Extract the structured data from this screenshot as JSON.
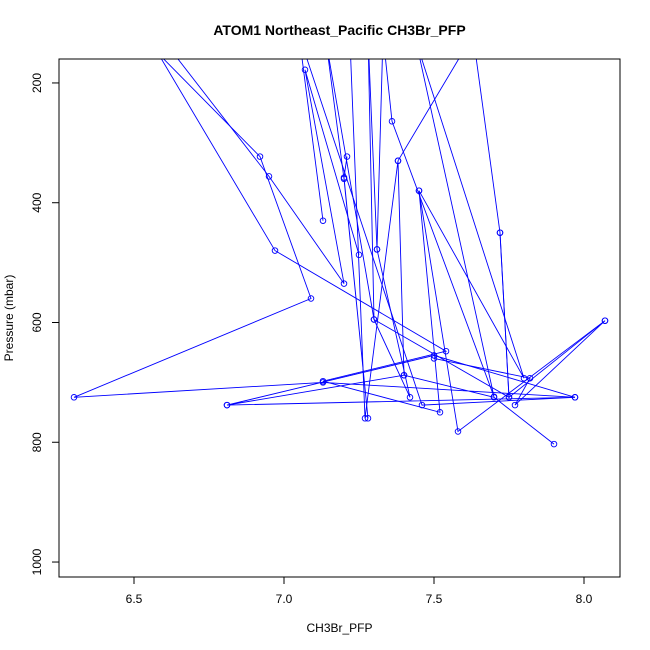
{
  "chart_data": {
    "type": "line",
    "title": "ATOM1 Northeast_Pacific CH3Br_PFP",
    "xlabel": "CH3Br_PFP",
    "ylabel": "Pressure (mbar)",
    "xlim": [
      6.25,
      8.12
    ],
    "ylim": [
      1025,
      160
    ],
    "y_reversed": true,
    "x_ticks": [
      6.5,
      7.0,
      7.5,
      8.0
    ],
    "x_tick_labels": [
      "6.5",
      "7.0",
      "7.5",
      "8.0"
    ],
    "y_ticks": [
      200,
      400,
      600,
      800,
      1000
    ],
    "y_tick_labels": [
      "200",
      "400",
      "600",
      "800",
      "1000"
    ],
    "colors": {
      "series": "#0000ff"
    },
    "grid": false,
    "legend": "none",
    "series": [
      {
        "points": [
          {
            "x": 6.52,
            "y": 120
          },
          {
            "x": 6.92,
            "y": 323
          },
          {
            "x": 7.09,
            "y": 560
          },
          {
            "x": 6.3,
            "y": 725
          },
          {
            "x": 7.13,
            "y": 700
          },
          {
            "x": 7.97,
            "y": 725
          },
          {
            "x": 7.5,
            "y": 655
          },
          {
            "x": 6.81,
            "y": 738
          },
          {
            "x": 7.4,
            "y": 688
          },
          {
            "x": 7.7,
            "y": 725
          },
          {
            "x": 7.9,
            "y": 803
          }
        ]
      },
      {
        "points": [
          {
            "x": 6.55,
            "y": 125
          },
          {
            "x": 6.97,
            "y": 480
          },
          {
            "x": 7.54,
            "y": 648
          },
          {
            "x": 7.13,
            "y": 698
          },
          {
            "x": 7.52,
            "y": 750
          },
          {
            "x": 7.45,
            "y": 380
          },
          {
            "x": 7.58,
            "y": 782
          },
          {
            "x": 8.07,
            "y": 597
          },
          {
            "x": 7.77,
            "y": 738
          },
          {
            "x": 7.82,
            "y": 693
          },
          {
            "x": 7.5,
            "y": 660
          }
        ]
      },
      {
        "points": [
          {
            "x": 6.6,
            "y": 130
          },
          {
            "x": 6.95,
            "y": 356
          },
          {
            "x": 7.2,
            "y": 535
          },
          {
            "x": 7.07,
            "y": 178
          },
          {
            "x": 7.25,
            "y": 487
          }
        ]
      },
      {
        "points": [
          {
            "x": 7.21,
            "y": 323
          },
          {
            "x": 7.2,
            "y": 358
          },
          {
            "x": 7.28,
            "y": 760
          },
          {
            "x": 7.2,
            "y": 360
          },
          {
            "x": 7.14,
            "y": 130
          },
          {
            "x": 7.3,
            "y": 595
          },
          {
            "x": 7.28,
            "y": 120
          }
        ]
      },
      {
        "points": [
          {
            "x": 7.13,
            "y": 430
          },
          {
            "x": 7.05,
            "y": 120
          },
          {
            "x": 7.46,
            "y": 738
          },
          {
            "x": 7.97,
            "y": 725
          },
          {
            "x": 6.81,
            "y": 738
          }
        ]
      },
      {
        "points": [
          {
            "x": 7.31,
            "y": 478
          },
          {
            "x": 7.33,
            "y": 120
          },
          {
            "x": 7.36,
            "y": 264
          },
          {
            "x": 7.7,
            "y": 724
          },
          {
            "x": 7.44,
            "y": 130
          },
          {
            "x": 7.8,
            "y": 693
          },
          {
            "x": 7.45,
            "y": 380
          }
        ]
      },
      {
        "points": [
          {
            "x": 7.4,
            "y": 688
          },
          {
            "x": 7.38,
            "y": 330
          },
          {
            "x": 7.27,
            "y": 760
          },
          {
            "x": 7.22,
            "y": 130
          }
        ]
      },
      {
        "points": [
          {
            "x": 7.72,
            "y": 450
          },
          {
            "x": 7.75,
            "y": 725
          },
          {
            "x": 8.07,
            "y": 597
          }
        ]
      },
      {
        "points": [
          {
            "x": 7.28,
            "y": 120
          },
          {
            "x": 7.31,
            "y": 478
          },
          {
            "x": 7.42,
            "y": 725
          },
          {
            "x": 7.3,
            "y": 595
          },
          {
            "x": 7.75,
            "y": 725
          },
          {
            "x": 7.72,
            "y": 450
          },
          {
            "x": 7.63,
            "y": 120
          },
          {
            "x": 7.38,
            "y": 330
          }
        ]
      }
    ]
  }
}
